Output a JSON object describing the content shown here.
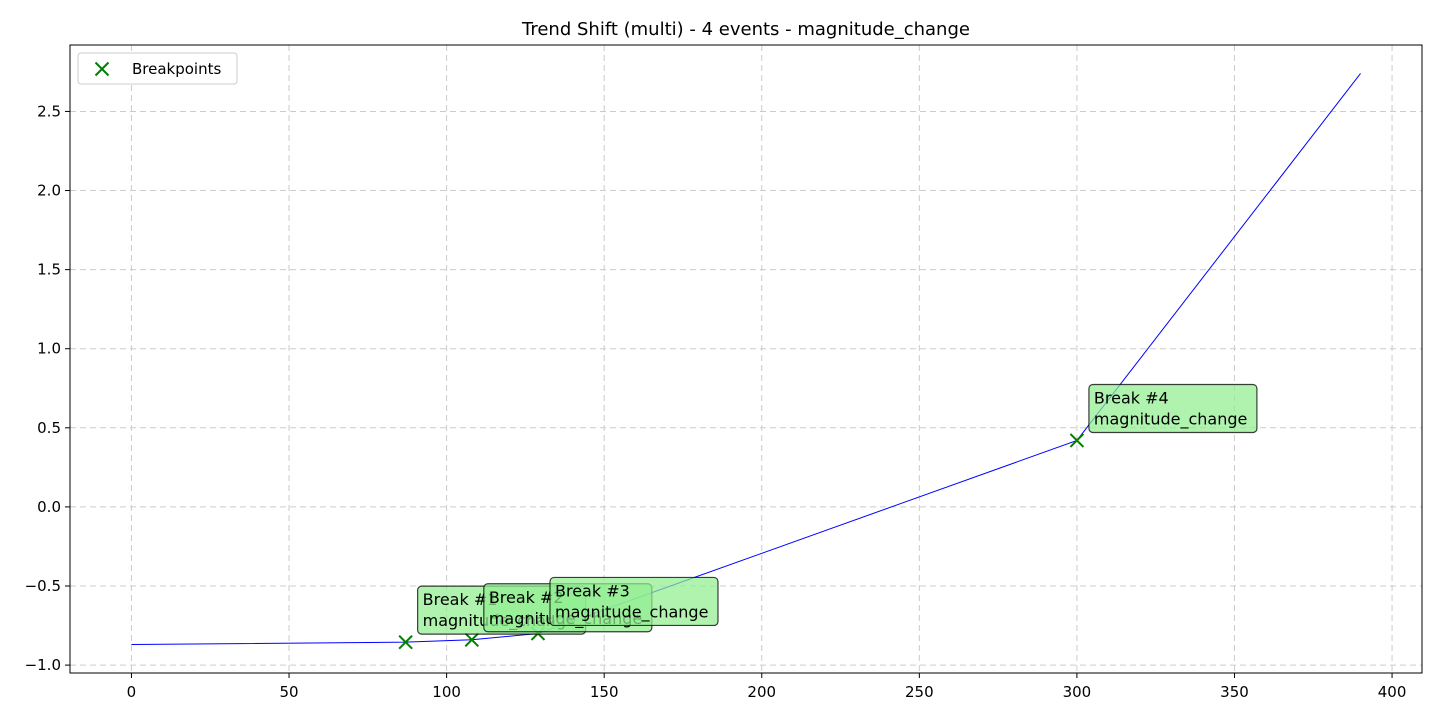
{
  "chart_data": {
    "type": "line",
    "title": "Trend Shift (multi) - 4 events - magnitude_change",
    "xlabel": "",
    "ylabel": "",
    "xlim": [
      -19.5,
      409.5
    ],
    "ylim": [
      -1.05,
      2.92
    ],
    "xticks": [
      0,
      50,
      100,
      150,
      200,
      250,
      300,
      350,
      400
    ],
    "yticks": [
      -1.0,
      -0.5,
      0.0,
      0.5,
      1.0,
      1.5,
      2.0,
      2.5
    ],
    "ytick_labels": [
      "−1.0",
      "−0.5",
      "0.0",
      "0.5",
      "1.0",
      "1.5",
      "2.0",
      "2.5"
    ],
    "grid": true,
    "legend_position": "top-left",
    "series": [
      {
        "x": [
          0,
          87,
          108,
          129,
          300,
          390
        ],
        "y": [
          -0.87,
          -0.855,
          -0.84,
          -0.8,
          0.42,
          2.74
        ],
        "color": "#0000ff"
      }
    ],
    "breakpoints": {
      "name": "Breakpoints",
      "color": "#008000",
      "x": [
        87,
        108,
        129,
        300
      ],
      "y": [
        -0.855,
        -0.84,
        -0.8,
        0.42
      ]
    },
    "annotations": [
      {
        "line1": "Break #1",
        "line2": "magnitude_change",
        "x": 87,
        "y": -0.855
      },
      {
        "line1": "Break #2",
        "line2": "magnitude_change",
        "x": 108,
        "y": -0.84
      },
      {
        "line1": "Break #3",
        "line2": "magnitude_change",
        "x": 129,
        "y": -0.8
      },
      {
        "line1": "Break #4",
        "line2": "magnitude_change",
        "x": 300,
        "y": 0.42
      }
    ],
    "annotation_fill": "#90ee90"
  }
}
